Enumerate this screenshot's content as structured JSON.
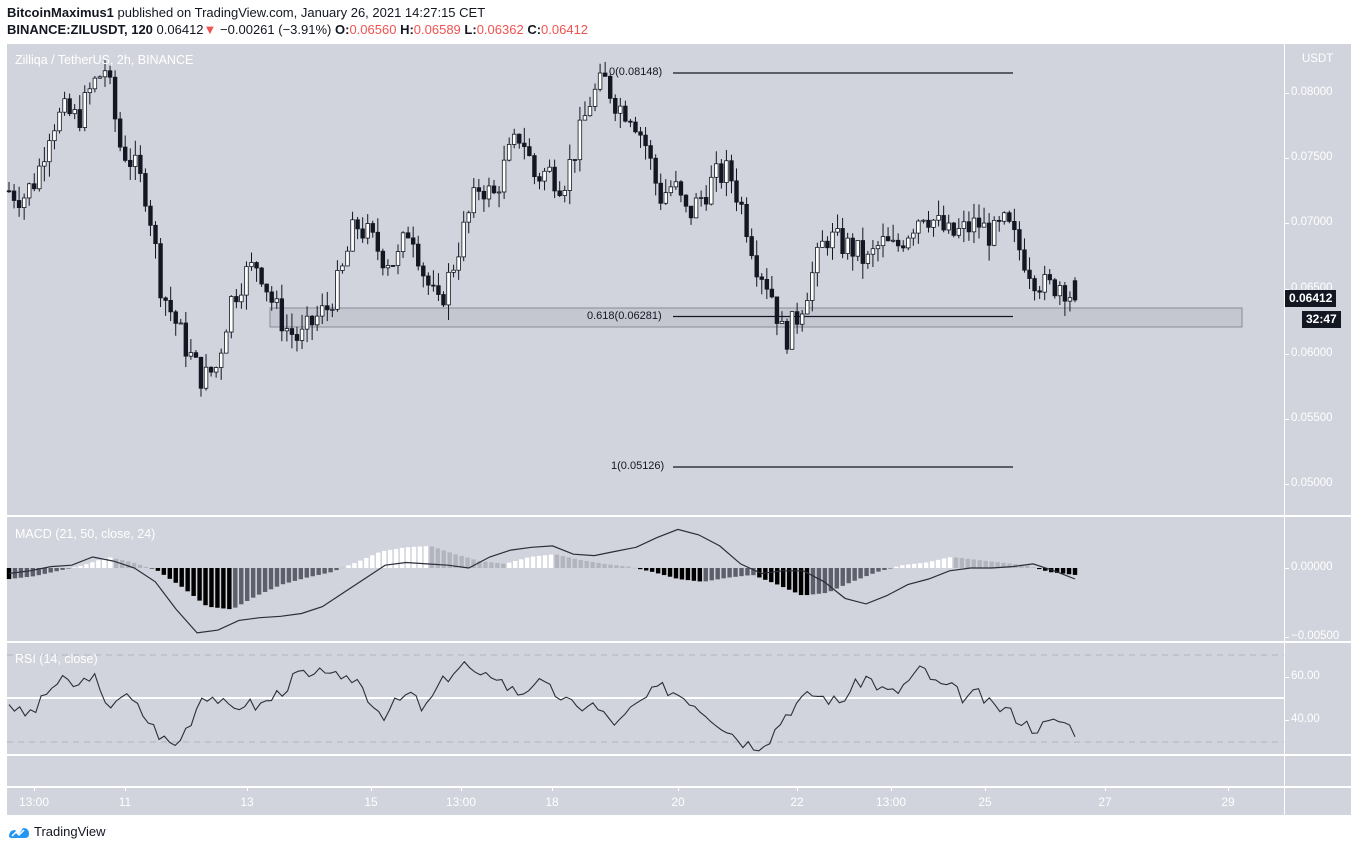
{
  "header": {
    "publisher": "BitcoinMaximus1",
    "published_text": " published on TradingView.com, January 26, 2021 14:27:15 CET",
    "symbol_line": "BINANCE:ZILUSDT, 120",
    "last_price": "0.06412",
    "change": "−0.00261 (−3.91%)",
    "o_label": "O:",
    "o_value": "0.06560",
    "h_label": "H:",
    "h_value": "0.06589",
    "l_label": "L:",
    "l_value": "0.06362",
    "c_label": "C:",
    "c_value": "0.06412",
    "down_arrow": "▼"
  },
  "main_pane": {
    "title": "Zilliqa / TetherUS, 2h, BINANCE",
    "currency": "USDT",
    "price_tag": "0.06412",
    "countdown": "32:47",
    "fib_levels": [
      {
        "label": "0(0.08148)",
        "price": 0.08148
      },
      {
        "label": "0.618(0.06281)",
        "price": 0.06281
      },
      {
        "label": "1(0.05126)",
        "price": 0.05126
      }
    ]
  },
  "macd_pane": {
    "title": "MACD (21, 50, close, 24)"
  },
  "rsi_pane": {
    "title": "RSI (14, close)"
  },
  "footer": {
    "brand": "TradingView"
  },
  "colors": {
    "background": "#d1d4dc",
    "candle_up_fill": "#ffffff",
    "candle_down_fill": "#131722",
    "red": "#ef5350",
    "zone_fill": "#c4c7d0",
    "zone_border": "#8a8d96"
  },
  "chart_data": [
    {
      "type": "candlestick",
      "title": "Zilliqa / TetherUS, 2h, BINANCE",
      "ylabel": "USDT",
      "ylim": [
        0.0465,
        0.084
      ],
      "y_ticks": [
        "0.08000",
        "0.07500",
        "0.07000",
        "0.06500",
        "0.06000",
        "0.05500",
        "0.05000"
      ],
      "x_ticks": [
        "13:00",
        "11",
        "13",
        "15",
        "13:00",
        "18",
        "20",
        "22",
        "13:00",
        "25",
        "27",
        "29"
      ],
      "last_price": 0.06412,
      "annotations": [
        {
          "type": "fib_level",
          "label": "0(0.08148)",
          "value": 0.08148
        },
        {
          "type": "fib_level",
          "label": "0.618(0.06281)",
          "value": 0.06281
        },
        {
          "type": "fib_level",
          "label": "1(0.05126)",
          "value": 0.05126
        },
        {
          "type": "support_zone",
          "from": 0.0621,
          "to": 0.06355
        }
      ],
      "close_path": [
        0.0725,
        0.072,
        0.0735,
        0.0775,
        0.0785,
        0.078,
        0.0805,
        0.082,
        0.076,
        0.0745,
        0.072,
        0.065,
        0.0625,
        0.06,
        0.058,
        0.059,
        0.064,
        0.066,
        0.067,
        0.064,
        0.062,
        0.061,
        0.0625,
        0.0635,
        0.066,
        0.07,
        0.069,
        0.0675,
        0.067,
        0.07,
        0.066,
        0.0635,
        0.0665,
        0.07,
        0.073,
        0.072,
        0.075,
        0.077,
        0.0735,
        0.074,
        0.073,
        0.076,
        0.0795,
        0.081,
        0.079,
        0.0785,
        0.076,
        0.072,
        0.073,
        0.0705,
        0.072,
        0.0735,
        0.074,
        0.071,
        0.067,
        0.065,
        0.061,
        0.063,
        0.066,
        0.069,
        0.0685,
        0.068,
        0.067,
        0.0685,
        0.068,
        0.0695,
        0.071,
        0.07,
        0.069,
        0.0695,
        0.07,
        0.069,
        0.07,
        0.068,
        0.066,
        0.065,
        0.0655,
        0.0641
      ]
    },
    {
      "type": "bar+line",
      "title": "MACD (21, 50, close, 24)",
      "ylim": [
        -0.006,
        0.0035
      ],
      "y_ticks": [
        "0.00000",
        "−0.00500"
      ],
      "macd_line": [
        -0.0004,
        -0.0002,
        0.0001,
        0.0002,
        0.0008,
        0.0005,
        0.0,
        -0.001,
        -0.003,
        -0.0047,
        -0.0045,
        -0.0038,
        -0.0036,
        -0.0035,
        -0.0033,
        -0.0028,
        -0.0018,
        -0.0008,
        0.0002,
        0.0004,
        0.0003,
        0.0002,
        0.0,
        0.0008,
        0.0013,
        0.0015,
        0.0016,
        0.001,
        0.0009,
        0.0012,
        0.0015,
        0.0022,
        0.0028,
        0.0024,
        0.0016,
        0.0003,
        -0.0004,
        -0.0002,
        -0.0002,
        -0.001,
        -0.0022,
        -0.0026,
        -0.002,
        -0.0012,
        -0.0008,
        -0.0002,
        0.0,
        0.0,
        0.0001,
        0.0003,
        -0.0002,
        -0.0008
      ],
      "histogram": [
        -0.0008,
        -0.0006,
        -0.0002,
        0.0002,
        0.0008,
        0.0004,
        -0.0002,
        -0.0014,
        -0.0028,
        -0.003,
        -0.002,
        -0.0012,
        -0.0007,
        -0.0003,
        0.0004,
        0.0012,
        0.0015,
        0.0016,
        0.001,
        0.0005,
        0.0003,
        0.0008,
        0.001,
        0.0006,
        0.0003,
        0.0001,
        -0.0003,
        -0.0008,
        -0.001,
        -0.0007,
        -0.0005,
        -0.0012,
        -0.002,
        -0.0018,
        -0.001,
        -0.0003,
        0.0002,
        0.0004,
        0.0008,
        0.0006,
        0.0004,
        0.0002,
        -0.0003,
        -0.0005
      ]
    },
    {
      "type": "line",
      "title": "RSI (14, close)",
      "ylim": [
        18,
        80
      ],
      "y_ticks": [
        "60.00",
        "40.00"
      ],
      "bands": {
        "upper": 70,
        "middle": 50,
        "lower": 30
      },
      "values": [
        48,
        42,
        45,
        55,
        58,
        55,
        62,
        45,
        52,
        48,
        40,
        32,
        28,
        38,
        52,
        50,
        44,
        48,
        46,
        50,
        55,
        62,
        58,
        65,
        56,
        60,
        50,
        42,
        48,
        52,
        44,
        55,
        62,
        66,
        58,
        62,
        55,
        52,
        58,
        54,
        50,
        45,
        48,
        42,
        38,
        45,
        50,
        55,
        53,
        50,
        45,
        40,
        35,
        30,
        28,
        32,
        42,
        48,
        52,
        50,
        48,
        55,
        60,
        54,
        52,
        58,
        64,
        56,
        55,
        50,
        52,
        46,
        45,
        40,
        36,
        38,
        40,
        35
      ]
    }
  ]
}
